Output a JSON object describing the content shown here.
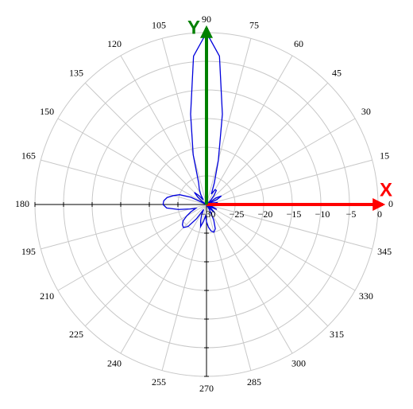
{
  "chart_data": {
    "type": "polar",
    "theta": [
      0,
      5,
      10,
      15,
      20,
      25,
      30,
      35,
      40,
      45,
      50,
      55,
      60,
      65,
      70,
      75,
      80,
      85,
      90,
      95,
      100,
      105,
      110,
      115,
      120,
      125,
      130,
      135,
      140,
      145,
      150,
      155,
      160,
      165,
      170,
      175,
      180,
      185,
      190,
      195,
      200,
      205,
      210,
      215,
      220,
      225,
      230,
      235,
      240,
      245,
      250,
      255,
      260,
      265,
      270,
      275,
      280,
      285,
      290,
      295,
      300,
      305,
      310,
      315,
      320,
      325,
      330,
      335,
      340,
      345,
      350,
      355
    ],
    "values": [
      -30,
      -29,
      -28,
      -29,
      -30,
      -28,
      -27,
      -28,
      -30,
      -29,
      -28,
      -27,
      -27,
      -28,
      -26,
      -22,
      -14,
      -4,
      0,
      -4,
      -14,
      -21,
      -26,
      -27,
      -28,
      -29,
      -28,
      -27,
      -28,
      -29,
      -30,
      -27,
      -25,
      -24,
      -23,
      -22.5,
      -22.4,
      -23,
      -25,
      -27,
      -28,
      -27,
      -26,
      -25,
      -24.5,
      -24.3,
      -25,
      -27,
      -29,
      -28,
      -27,
      -26,
      -27,
      -28,
      -27,
      -26,
      -25.3,
      -25,
      -25.5,
      -27,
      -29,
      -30,
      -29,
      -28,
      -29,
      -30,
      -29,
      -28,
      -29,
      -30,
      -29,
      -30
    ],
    "color": "#0000dd",
    "rlim": [
      -30,
      0
    ],
    "rticks": [
      {
        "value": -30,
        "label": "−30"
      },
      {
        "value": -25,
        "label": "−25"
      },
      {
        "value": -20,
        "label": "−20"
      },
      {
        "value": -15,
        "label": "−15"
      },
      {
        "value": -10,
        "label": "−10"
      },
      {
        "value": -5,
        "label": "−5"
      },
      0
    ],
    "thetaticks": [
      0,
      15,
      30,
      45,
      60,
      75,
      90,
      105,
      120,
      135,
      150,
      165,
      180,
      195,
      210,
      225,
      240,
      255,
      270,
      285,
      300,
      315,
      330,
      345
    ],
    "grid": true,
    "x_label": "X",
    "x_arrow_color": "#ff0000",
    "y_label": "Y",
    "y_arrow_color": "#008000"
  }
}
